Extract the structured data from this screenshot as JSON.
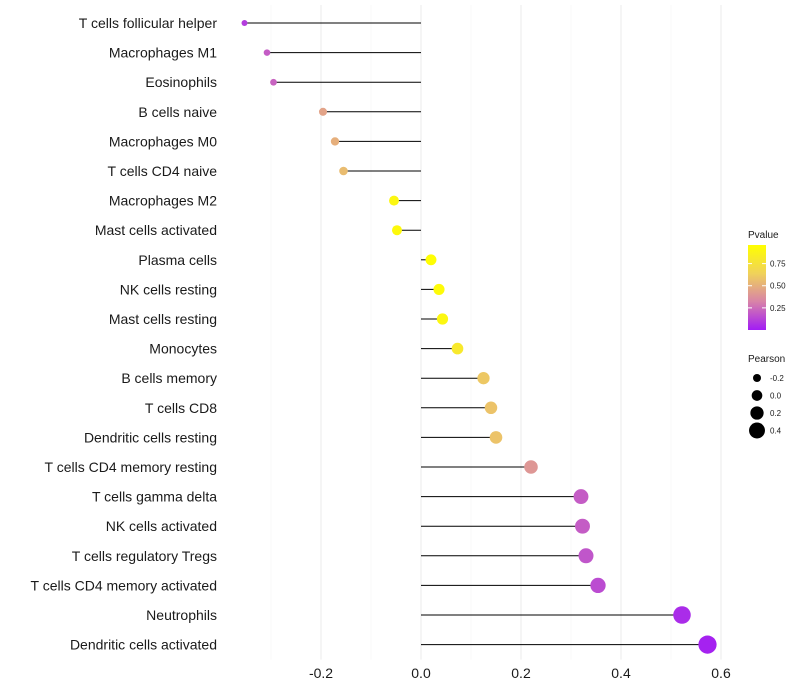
{
  "chart_data": {
    "type": "lollipop",
    "categories": [
      "T cells follicular helper",
      "Macrophages M1",
      "Eosinophils",
      "B cells naive",
      "Macrophages M0",
      "T cells CD4 naive",
      "Macrophages M2",
      "Mast cells activated",
      "Plasma cells",
      "NK cells resting",
      "Mast cells resting",
      "Monocytes",
      "B cells memory",
      "T cells CD8",
      "Dendritic cells resting",
      "T cells CD4 memory resting",
      "T cells gamma delta",
      "NK cells activated",
      "T cells regulatory  Tregs ",
      "T cells CD4 memory activated",
      "Neutrophils",
      "Dendritic cells activated"
    ],
    "pearson": [
      -0.353,
      -0.308,
      -0.295,
      -0.196,
      -0.172,
      -0.155,
      -0.054,
      -0.048,
      0.02,
      0.036,
      0.043,
      0.073,
      0.125,
      0.14,
      0.15,
      0.22,
      0.32,
      0.323,
      0.33,
      0.354,
      0.522,
      0.573
    ],
    "pvalue": [
      0.1,
      0.2,
      0.22,
      0.45,
      0.5,
      0.55,
      0.9,
      0.92,
      0.95,
      0.93,
      0.9,
      0.8,
      0.6,
      0.58,
      0.58,
      0.4,
      0.2,
      0.2,
      0.18,
      0.15,
      0.05,
      0.02
    ],
    "x_ticks": [
      -0.2,
      0.0,
      0.2,
      0.4,
      0.6
    ],
    "x_tick_labels": [
      "-0.2",
      "0.0",
      "0.2",
      "0.4",
      "0.6"
    ],
    "xlim": [
      -0.4,
      0.6
    ],
    "xlabel": "",
    "ylabel": "",
    "legend_color": {
      "title": "Pvalue",
      "ticks": [
        0.75,
        0.5,
        0.25
      ],
      "tick_labels": [
        "0.75",
        "0.50",
        "0.25"
      ],
      "range": [
        0.0,
        0.96
      ],
      "colors": [
        "#a21cf5",
        "#d883a8",
        "#f0d25a",
        "#ffff00"
      ]
    },
    "legend_size": {
      "title": "Pearson",
      "values": [
        -0.2,
        0.0,
        0.2,
        0.4
      ],
      "labels": [
        "-0.2",
        "0.0",
        "0.2",
        "0.4"
      ]
    },
    "colors": {
      "line": "#000000",
      "grid": "#ebebeb"
    }
  }
}
